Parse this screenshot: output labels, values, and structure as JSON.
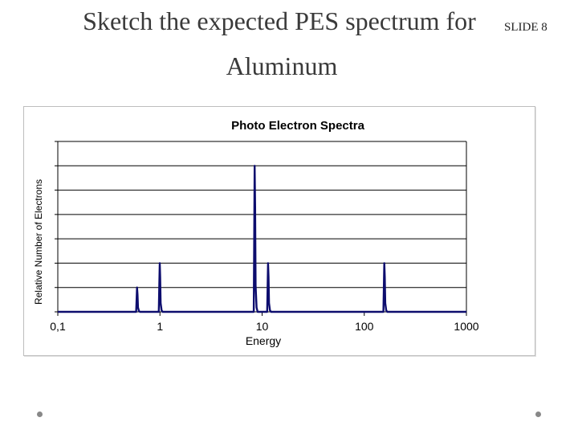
{
  "slide": {
    "title_line1": "Sketch the expected PES spectrum for",
    "title_line2": "Aluminum",
    "slide_number": "SLIDE 8"
  },
  "chart_data": {
    "type": "line",
    "title": "Photo Electron Spectra",
    "xlabel": "Energy",
    "ylabel": "Relative Number of Electrons",
    "x_scale": "log",
    "xlim": [
      0.1,
      1000
    ],
    "x_ticks": [
      0.1,
      1,
      10,
      100,
      1000
    ],
    "x_tick_labels": [
      "0,1",
      "1",
      "10",
      "100",
      "1000"
    ],
    "ylim": [
      0,
      7
    ],
    "y_ticks": [
      0,
      1,
      2,
      3,
      4,
      5,
      6,
      7
    ],
    "grid": "horizontal",
    "legend": "none",
    "line_color": "#0d0d6e",
    "peaks": [
      {
        "energy": 0.6,
        "height": 1
      },
      {
        "energy": 1.0,
        "height": 2
      },
      {
        "energy": 8.5,
        "height": 6
      },
      {
        "energy": 11.5,
        "height": 2
      },
      {
        "energy": 158,
        "height": 2
      }
    ]
  }
}
